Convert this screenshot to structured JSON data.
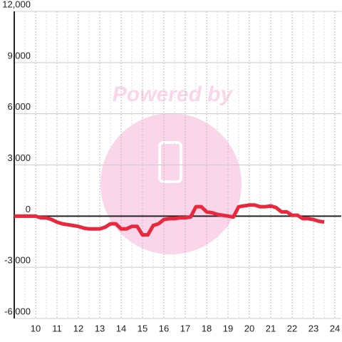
{
  "chart_data": {
    "type": "line",
    "watermark": "Powered by",
    "x": [
      9,
      9.25,
      9.5,
      9.75,
      10,
      10.25,
      10.5,
      10.75,
      11,
      11.25,
      11.5,
      11.75,
      12,
      12.25,
      12.5,
      12.75,
      13,
      13.25,
      13.5,
      13.75,
      14,
      14.25,
      14.5,
      14.75,
      15,
      15.25,
      15.5,
      15.75,
      16,
      16.25,
      16.5,
      16.75,
      17,
      17.25,
      17.5,
      17.75,
      18,
      18.25,
      18.5,
      18.75,
      19,
      19.25,
      19.5,
      19.75,
      20,
      20.25,
      20.5,
      20.75,
      21,
      21.25,
      21.5,
      21.75,
      22,
      22.25,
      22.5,
      22.75,
      23,
      23.25,
      23.5
    ],
    "values": [
      0,
      0,
      0,
      0,
      0,
      -100,
      -100,
      -200,
      -350,
      -450,
      -500,
      -550,
      -600,
      -700,
      -750,
      -750,
      -750,
      -650,
      -450,
      -450,
      -750,
      -750,
      -600,
      -600,
      -1100,
      -1100,
      -550,
      -450,
      -200,
      -150,
      -150,
      -100,
      -100,
      -50,
      550,
      550,
      250,
      200,
      100,
      50,
      0,
      -50,
      550,
      600,
      650,
      650,
      550,
      550,
      600,
      500,
      250,
      250,
      50,
      50,
      -150,
      -150,
      -200,
      -300,
      -350
    ],
    "color": "#e8283c",
    "xlim": [
      9,
      24.3
    ],
    "xticks": [
      10,
      11,
      12,
      13,
      14,
      15,
      16,
      17,
      18,
      19,
      20,
      21,
      22,
      23,
      24
    ],
    "ylim": [
      -6000,
      12000
    ],
    "yticks": [
      {
        "value": -6000,
        "label": "-6,000"
      },
      {
        "value": -3000,
        "label": "-3,000"
      },
      0,
      {
        "value": 3000,
        "label": "3,000"
      },
      {
        "value": 6000,
        "label": "6,000"
      },
      {
        "value": 9000,
        "label": "9,000"
      },
      {
        "value": 12000,
        "label": "12,000"
      }
    ],
    "grid": true
  }
}
